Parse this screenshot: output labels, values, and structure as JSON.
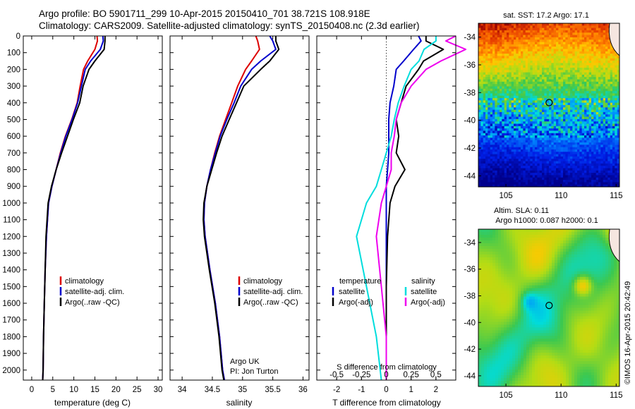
{
  "header": {
    "line1": "Argo profile: BO 5901711_299 10-Apr-2015 20150410_701 38.721S 108.918E",
    "line2": "Climatology: CARS2009. Satellite-adjusted climatology: synTS_20150408.nc (2.3d earlier)"
  },
  "footer": {
    "credit": "©IMOS 16-Apr-2015 20:42:49",
    "institution": "Argo UK",
    "pi": "PI: Jon Turton"
  },
  "colors": {
    "climatology": "#dd0000",
    "satellite": "#0000cc",
    "argo": "#000000",
    "salinity_satellite": "#00dddd",
    "salinity_argo": "#ee00ee"
  },
  "chart_data": [
    {
      "id": "temperature",
      "type": "line",
      "xlabel": "temperature (deg C)",
      "ylabel": "",
      "xlim": [
        -2,
        31
      ],
      "ylim": [
        2060,
        0
      ],
      "xticks": [
        0,
        5,
        10,
        15,
        20,
        25,
        30
      ],
      "yticks": [
        0,
        100,
        200,
        300,
        400,
        500,
        600,
        700,
        800,
        900,
        1000,
        1100,
        1200,
        1300,
        1400,
        1500,
        1600,
        1700,
        1800,
        1900,
        2000
      ],
      "legend": [
        "climatology",
        "satellite-adj. clim.",
        "Argo(..raw -QC)"
      ],
      "legend_position": "lower-center",
      "series": [
        {
          "name": "climatology",
          "color": "#dd0000",
          "x": [
            15.5,
            15.6,
            15.0,
            13.3,
            12.3,
            11.5,
            10.8,
            9.5,
            8.0,
            6.8,
            5.8,
            4.8,
            4.0,
            3.5,
            3.2,
            3.0,
            2.8,
            2.7,
            2.6
          ],
          "y": [
            0,
            30,
            80,
            150,
            200,
            300,
            400,
            500,
            600,
            700,
            800,
            900,
            1000,
            1200,
            1400,
            1600,
            1800,
            2000,
            2060
          ]
        },
        {
          "name": "satellite-adj. clim.",
          "color": "#0000cc",
          "x": [
            16.9,
            17.0,
            16.3,
            14.0,
            12.7,
            11.8,
            10.9,
            9.6,
            8.1,
            6.9,
            5.8,
            4.8,
            4.0,
            3.5,
            3.2,
            3.0,
            2.8,
            2.7,
            2.6
          ],
          "y": [
            0,
            30,
            80,
            150,
            200,
            300,
            400,
            500,
            600,
            700,
            800,
            900,
            1000,
            1200,
            1400,
            1600,
            1800,
            2000,
            2060
          ]
        },
        {
          "name": "Argo(..raw -QC)",
          "color": "#000000",
          "x": [
            17.4,
            17.4,
            17.2,
            15.0,
            13.6,
            12.2,
            11.4,
            9.9,
            8.5,
            7.1,
            5.8,
            4.7,
            3.9,
            3.4,
            3.2,
            3.0,
            2.8,
            2.7,
            2.6
          ],
          "y": [
            0,
            30,
            80,
            150,
            200,
            300,
            400,
            500,
            600,
            700,
            800,
            900,
            1000,
            1200,
            1400,
            1600,
            1800,
            2000,
            2060
          ]
        }
      ]
    },
    {
      "id": "salinity",
      "type": "line",
      "xlabel": "salinity",
      "xlim": [
        33.8,
        36.1
      ],
      "ylim": [
        2060,
        0
      ],
      "xticks": [
        34,
        34.5,
        35,
        35.5,
        36
      ],
      "legend": [
        "climatology",
        "satellite-adj. clim.",
        "Argo(..raw -QC)"
      ],
      "legend_position": "lower-right",
      "series": [
        {
          "name": "climatology",
          "color": "#dd0000",
          "x": [
            35.22,
            35.25,
            35.28,
            35.15,
            35.05,
            34.92,
            34.82,
            34.72,
            34.62,
            34.54,
            34.47,
            34.41,
            34.37,
            34.36,
            34.38,
            34.46,
            34.55,
            34.62,
            34.67,
            34.7
          ],
          "y": [
            0,
            30,
            80,
            150,
            200,
            300,
            400,
            500,
            600,
            700,
            800,
            900,
            1000,
            1100,
            1200,
            1400,
            1600,
            1800,
            2000,
            2060
          ]
        },
        {
          "name": "satellite-adj. clim.",
          "color": "#0000cc",
          "x": [
            35.45,
            35.5,
            35.55,
            35.3,
            35.15,
            34.97,
            34.86,
            34.74,
            34.63,
            34.55,
            34.47,
            34.41,
            34.37,
            34.36,
            34.38,
            34.46,
            34.55,
            34.62,
            34.67,
            34.7
          ],
          "y": [
            0,
            30,
            80,
            150,
            200,
            300,
            400,
            500,
            600,
            700,
            800,
            900,
            1000,
            1100,
            1200,
            1400,
            1600,
            1800,
            2000,
            2060
          ]
        },
        {
          "name": "Argo(..raw -QC)",
          "color": "#000000",
          "x": [
            35.55,
            35.55,
            35.6,
            35.45,
            35.3,
            35.02,
            34.9,
            34.78,
            34.66,
            34.57,
            34.49,
            34.41,
            34.36,
            34.35,
            34.37,
            34.45,
            34.54,
            34.61,
            34.66,
            34.69
          ],
          "y": [
            0,
            30,
            80,
            150,
            200,
            300,
            400,
            500,
            600,
            700,
            800,
            900,
            1000,
            1100,
            1200,
            1400,
            1600,
            1800,
            2000,
            2060
          ]
        }
      ]
    },
    {
      "id": "difference",
      "type": "line",
      "xlabel": "T difference from climatology",
      "xlabel_top": "S difference from climatology",
      "xlim": [
        -2.8,
        2.8
      ],
      "ylim": [
        2060,
        0
      ],
      "xticks": [
        -2,
        -1,
        0,
        1,
        2
      ],
      "xtick_labels": [
        "-2",
        "-1",
        "0",
        "1",
        "2"
      ],
      "s_ticks": [
        -0.5,
        -0.25,
        0,
        0.25,
        0.5
      ],
      "s_tick_labels": [
        "-0.5",
        "-0.25",
        "0",
        "0.25",
        "0.5"
      ],
      "zero_line": "dotted",
      "legend": {
        "temperature_title": "temperature",
        "salinity_title": "salinity",
        "temperature_items": [
          "satellite",
          "Argo(-adj)"
        ],
        "salinity_items": [
          "satellite",
          "Argo(-adj)"
        ]
      },
      "legend_position": "lower-center",
      "series": [
        {
          "name": "temperature satellite",
          "color": "#0000cc",
          "x": [
            1.3,
            1.4,
            1.1,
            0.7,
            0.4,
            0.3,
            0.15,
            0.1,
            0.1,
            0.1,
            0.05,
            0.0,
            0.0,
            0.0,
            0.0,
            0.0,
            0.0
          ],
          "y": [
            0,
            30,
            80,
            150,
            200,
            300,
            400,
            500,
            600,
            700,
            800,
            900,
            1000,
            1200,
            1500,
            1800,
            2060
          ]
        },
        {
          "name": "temperature Argo(-adj)",
          "color": "#000000",
          "x": [
            1.6,
            1.6,
            2.3,
            1.5,
            1.3,
            0.8,
            0.6,
            0.4,
            0.5,
            0.4,
            0.75,
            0.35,
            0.15,
            0.05,
            0.0,
            0.0,
            0.0
          ],
          "y": [
            0,
            30,
            80,
            150,
            200,
            300,
            400,
            500,
            600,
            700,
            800,
            900,
            1000,
            1200,
            1500,
            1800,
            2060
          ]
        },
        {
          "name": "salinity satellite",
          "color": "#00dddd",
          "x": [
            0.5,
            0.5,
            0.38,
            0.33,
            0.25,
            0.18,
            0.12,
            0.08,
            0.05,
            0.0,
            -0.05,
            -0.1,
            -0.2,
            -0.3,
            -0.2,
            -0.1,
            -0.05
          ],
          "y": [
            0,
            30,
            80,
            150,
            200,
            300,
            400,
            500,
            600,
            700,
            800,
            900,
            1000,
            1200,
            1500,
            1800,
            2060
          ]
        },
        {
          "name": "salinity Argo(-adj)",
          "color": "#ee00ee",
          "x": [
            0.7,
            0.6,
            0.8,
            0.55,
            0.4,
            0.25,
            0.15,
            0.1,
            0.08,
            0.05,
            0.05,
            0.0,
            -0.05,
            -0.1,
            -0.05,
            0.0,
            0.0
          ],
          "y": [
            0,
            30,
            80,
            150,
            200,
            300,
            400,
            500,
            600,
            700,
            800,
            900,
            1000,
            1200,
            1500,
            1800,
            2060
          ]
        }
      ]
    },
    {
      "id": "sst_map",
      "type": "heatmap",
      "title": "sat. SST: 17.2 Argo: 17.1",
      "xlim": [
        102.5,
        115.3
      ],
      "ylim": [
        -44.8,
        -33
      ],
      "xticks": [
        105,
        110,
        115
      ],
      "yticks": [
        -34,
        -36,
        -38,
        -40,
        -42,
        -44
      ],
      "marker": {
        "lon": 108.918,
        "lat": -38.721
      }
    },
    {
      "id": "sla_map",
      "type": "heatmap",
      "title_line1": "Altim. SLA: 0.11",
      "title_line2": "Argo h1000: 0.087 h2000: 0.1",
      "xlim": [
        102.5,
        115.3
      ],
      "ylim": [
        -44.8,
        -33
      ],
      "xticks": [
        105,
        110,
        115
      ],
      "yticks": [
        -34,
        -36,
        -38,
        -40,
        -42,
        -44
      ],
      "marker": {
        "lon": 108.918,
        "lat": -38.721
      }
    }
  ]
}
